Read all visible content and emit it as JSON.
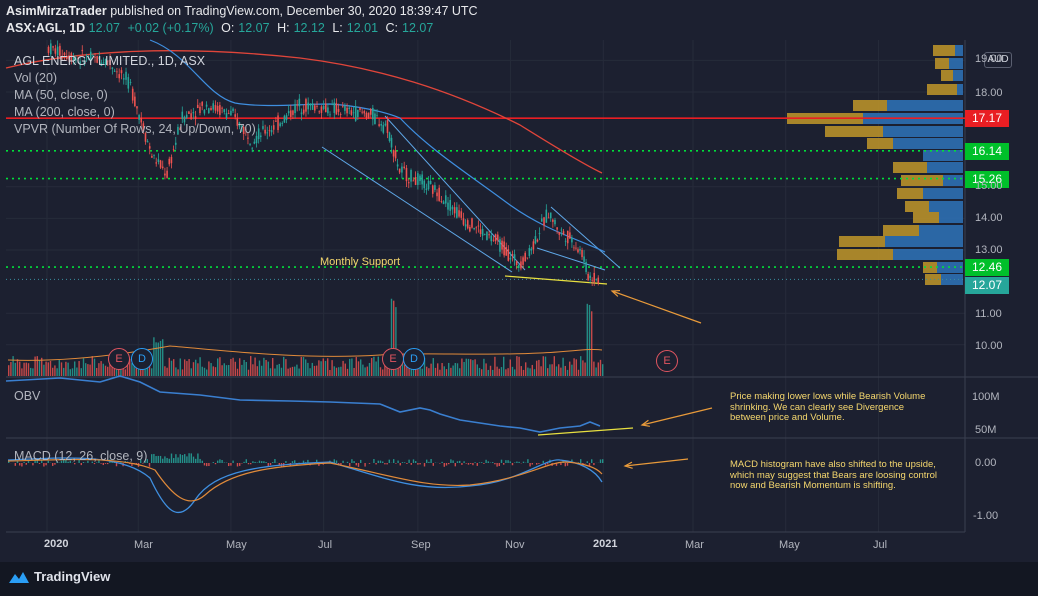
{
  "header": {
    "publisher": "AsimMirzaTrader",
    "published_text": "published on TradingView.com, December 30, 2020 18:39:47 UTC",
    "symbol": "ASX:AGL, 1D",
    "last": "12.07",
    "change": "+0.02 (+0.17%)",
    "open_label": "O:",
    "open": "12.07",
    "high_label": "H:",
    "high": "12.12",
    "low_label": "L:",
    "low": "12.01",
    "close_label": "C:",
    "close": "12.07"
  },
  "legend": {
    "title": "AGL ENERGY LIMITED., 1D, ASX",
    "vol": "Vol (20)",
    "ma50": "MA (50, close, 0)",
    "ma200": "MA (200, close, 0)",
    "vpvr": "VPVR (Number Of Rows, 24, Up/Down, 70)",
    "obv": "OBV",
    "macd": "MACD (12, 26, close, 9)"
  },
  "currency_button": "AUD",
  "annotations": {
    "support": "Monthly Support",
    "obv_note": [
      "Price making lower lows while Bearish Volume",
      "shrinking. We can clearly see Divergence",
      "between price and Volume."
    ],
    "macd_note": [
      "MACD histogram have also shifted to the upside,",
      "which may suggest that Bears are loosing control",
      "now and Bearish Momentum is shifting."
    ]
  },
  "price_tags": [
    {
      "value": "17.17",
      "color": "#e91e23"
    },
    {
      "value": "16.14",
      "color": "#00c02a"
    },
    {
      "value": "15.26",
      "color": "#00c02a"
    },
    {
      "value": "12.46",
      "color": "#00c02a"
    },
    {
      "value": "12.07",
      "color": "#26a69a"
    }
  ],
  "footer": {
    "brand": "TradingView"
  },
  "chart_data": {
    "type": "candlestick",
    "price_axis": {
      "ticks": [
        "19.00",
        "18.00",
        "15.00",
        "14.00",
        "13.00",
        "11.00",
        "10.00"
      ],
      "visible_range": [
        9.6,
        19.2
      ]
    },
    "obv_axis": {
      "ticks": [
        "100M",
        "50M"
      ]
    },
    "macd_axis": {
      "ticks": [
        "0.00",
        "-1.00"
      ]
    },
    "x_ticks": [
      "2020",
      "Mar",
      "May",
      "Jul",
      "Sep",
      "Nov",
      "2021",
      "Mar",
      "May",
      "Jul"
    ],
    "levels": [
      {
        "value": 17.17,
        "style": "solid",
        "color": "#e91e23"
      },
      {
        "value": 16.14,
        "style": "dotted",
        "color": "#00e03a"
      },
      {
        "value": 15.26,
        "style": "dotted",
        "color": "#00e03a"
      },
      {
        "value": 12.46,
        "style": "dotted",
        "color": "#00e03a"
      }
    ],
    "close_path": [
      {
        "t": "2020-01-02",
        "close": 19.4
      },
      {
        "t": "2020-01-20",
        "close": 19.1
      },
      {
        "t": "2020-02-10",
        "close": 19.0
      },
      {
        "t": "2020-02-25",
        "close": 18.2
      },
      {
        "t": "2020-03-10",
        "close": 16.0
      },
      {
        "t": "2020-03-20",
        "close": 15.4
      },
      {
        "t": "2020-03-30",
        "close": 17.2
      },
      {
        "t": "2020-04-15",
        "close": 17.6
      },
      {
        "t": "2020-05-01",
        "close": 17.3
      },
      {
        "t": "2020-05-15",
        "close": 16.5
      },
      {
        "t": "2020-06-01",
        "close": 17.0
      },
      {
        "t": "2020-06-15",
        "close": 17.6
      },
      {
        "t": "2020-07-01",
        "close": 17.5
      },
      {
        "t": "2020-07-15",
        "close": 17.4
      },
      {
        "t": "2020-08-01",
        "close": 17.3
      },
      {
        "t": "2020-08-12",
        "close": 16.9
      },
      {
        "t": "2020-08-20",
        "close": 15.5
      },
      {
        "t": "2020-09-01",
        "close": 15.2
      },
      {
        "t": "2020-09-15",
        "close": 14.8
      },
      {
        "t": "2020-10-01",
        "close": 14.0
      },
      {
        "t": "2020-10-15",
        "close": 13.5
      },
      {
        "t": "2020-10-25",
        "close": 13.2
      },
      {
        "t": "2020-11-05",
        "close": 12.6
      },
      {
        "t": "2020-11-12",
        "close": 12.8
      },
      {
        "t": "2020-11-20",
        "close": 13.6
      },
      {
        "t": "2020-11-26",
        "close": 14.2
      },
      {
        "t": "2020-12-03",
        "close": 13.6
      },
      {
        "t": "2020-12-10",
        "close": 13.4
      },
      {
        "t": "2020-12-18",
        "close": 12.9
      },
      {
        "t": "2020-12-22",
        "close": 12.2
      },
      {
        "t": "2020-12-30",
        "close": 12.07
      }
    ],
    "series": [
      {
        "name": "MA (200, close, 0)",
        "color": "#e0453a"
      },
      {
        "name": "MA (50, close, 0)",
        "color": "#3f8fe0"
      },
      {
        "name": "OBV",
        "color": "#3a7fd0"
      },
      {
        "name": "MACD",
        "color": "#3f8fe0"
      }
    ],
    "earnings_events": [
      {
        "t": "2020-02-10",
        "kind": "E"
      },
      {
        "t": "2020-02-22",
        "kind": "D"
      },
      {
        "t": "2020-08-10",
        "kind": "E"
      },
      {
        "t": "2020-08-22",
        "kind": "D"
      },
      {
        "t": "2021-02-10",
        "kind": "E"
      }
    ]
  }
}
